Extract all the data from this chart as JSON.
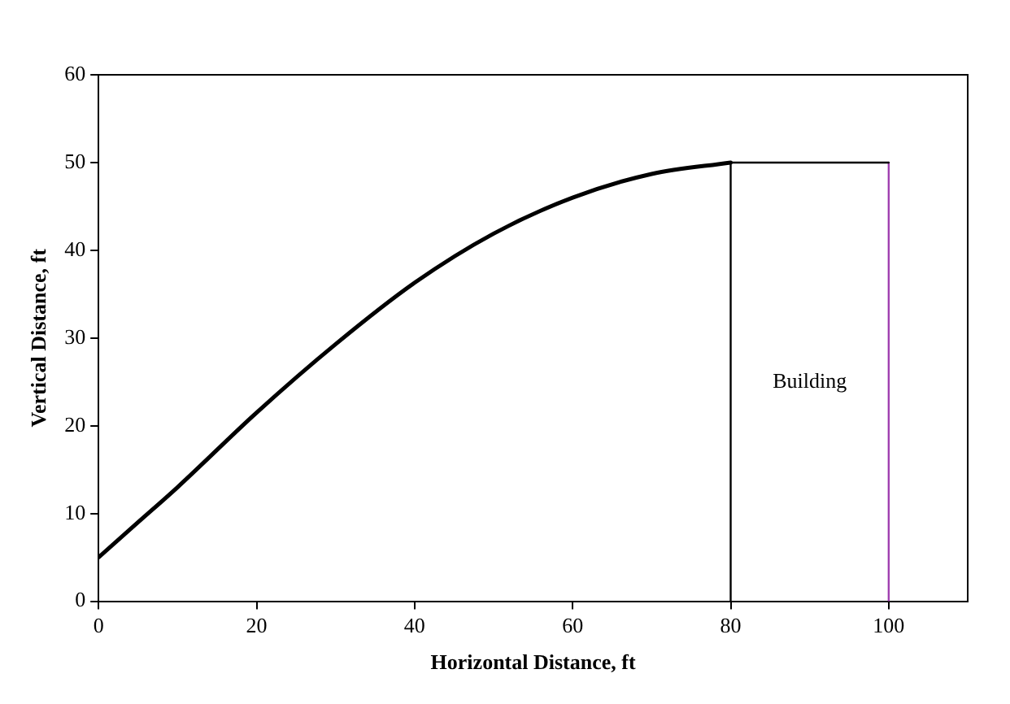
{
  "chart_data": {
    "type": "line",
    "xlabel": "Horizontal Distance, ft",
    "ylabel": "Vertical Distance, ft",
    "xlim": [
      0,
      110
    ],
    "xticks": [
      0,
      20,
      40,
      60,
      80,
      100
    ],
    "ylim": [
      0,
      60
    ],
    "yticks": [
      0,
      10,
      20,
      30,
      40,
      50,
      60
    ],
    "grid": false,
    "legend": false,
    "marker": "none",
    "line_style": "solid",
    "series": [
      {
        "color": "#000000",
        "x": [
          0,
          5,
          10,
          20,
          30,
          40,
          50,
          60,
          70,
          80
        ],
        "values": [
          5,
          9,
          13,
          21.5,
          29.3,
          36.3,
          41.9,
          46,
          48.7,
          50
        ]
      },
      {
        "color": "#000000",
        "x": [
          80,
          80,
          100
        ],
        "values": [
          0,
          50,
          50
        ]
      },
      {
        "color": "#a040b0",
        "x": [
          100,
          100
        ],
        "values": [
          0,
          50
        ]
      }
    ],
    "annotations": [
      "Building"
    ]
  }
}
